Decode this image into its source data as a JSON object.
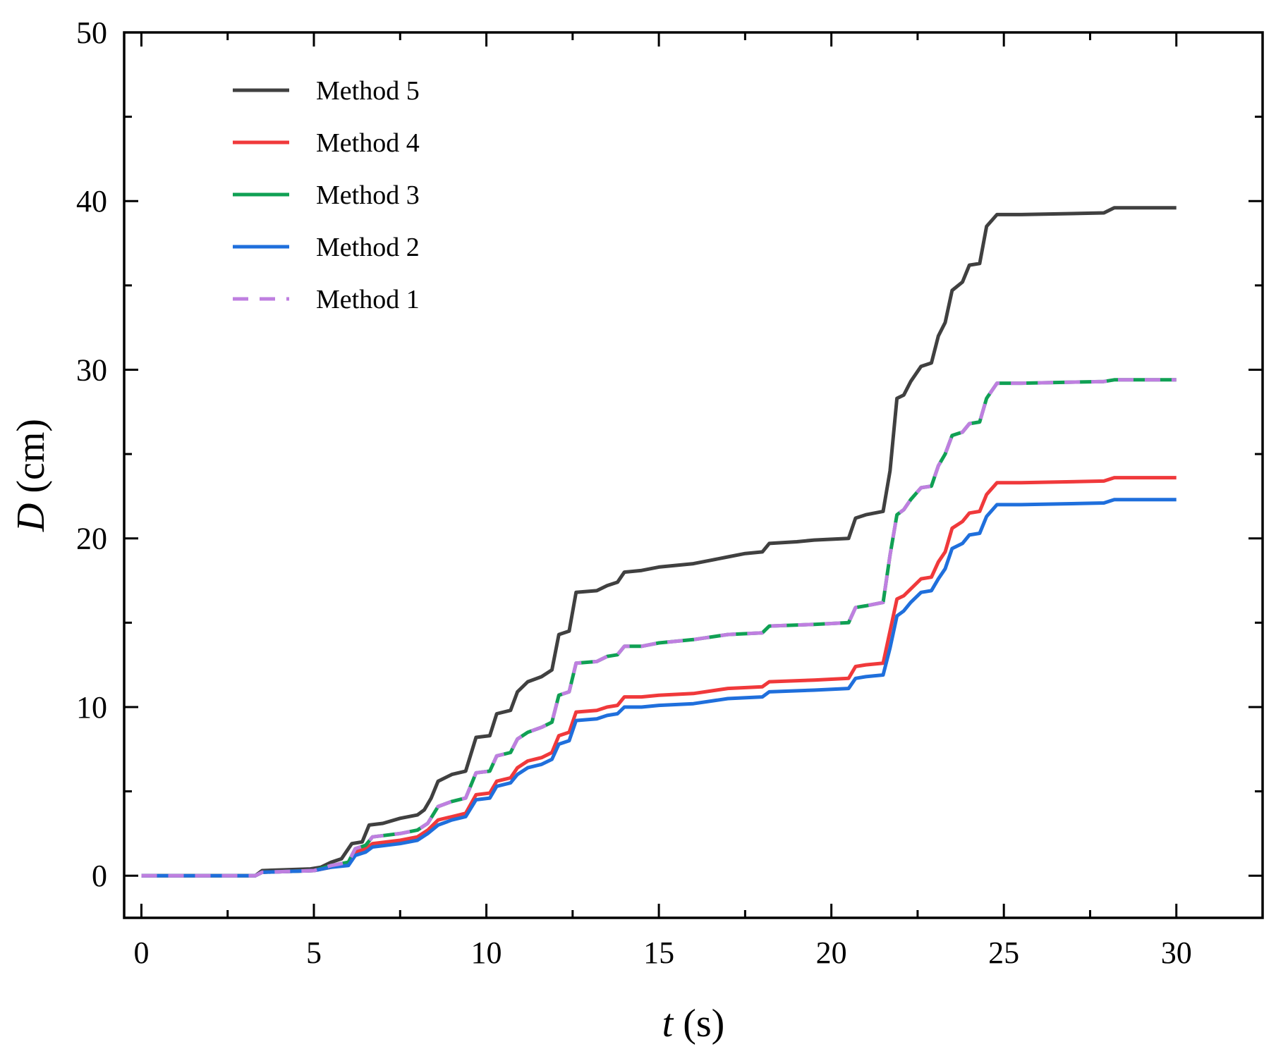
{
  "chart_data": {
    "type": "line",
    "title": "",
    "xlabel": {
      "symbol": "t",
      "unit": " (s)"
    },
    "ylabel": {
      "symbol": "D",
      "unit": " (cm)"
    },
    "xlim": [
      -0.5,
      32.5
    ],
    "ylim": [
      -2.5,
      50
    ],
    "xticks": [
      0,
      5,
      10,
      15,
      20,
      25,
      30
    ],
    "yticks": [
      0,
      10,
      20,
      30,
      40,
      50
    ],
    "grid": false,
    "legend": {
      "position": "top-left"
    },
    "series": [
      {
        "name": "Method 5",
        "color": "#404040",
        "dash": false,
        "points": [
          [
            0,
            0
          ],
          [
            3.3,
            0
          ],
          [
            3.5,
            0.3
          ],
          [
            4.9,
            0.4
          ],
          [
            5.2,
            0.5
          ],
          [
            5.5,
            0.8
          ],
          [
            5.8,
            1.0
          ],
          [
            6.1,
            1.9
          ],
          [
            6.4,
            2.0
          ],
          [
            6.6,
            3.0
          ],
          [
            7.0,
            3.1
          ],
          [
            7.5,
            3.4
          ],
          [
            8.0,
            3.6
          ],
          [
            8.2,
            3.9
          ],
          [
            8.4,
            4.6
          ],
          [
            8.6,
            5.6
          ],
          [
            9.0,
            6.0
          ],
          [
            9.4,
            6.2
          ],
          [
            9.7,
            8.2
          ],
          [
            10.1,
            8.3
          ],
          [
            10.3,
            9.6
          ],
          [
            10.7,
            9.8
          ],
          [
            10.9,
            10.9
          ],
          [
            11.2,
            11.5
          ],
          [
            11.6,
            11.8
          ],
          [
            11.9,
            12.2
          ],
          [
            12.1,
            14.3
          ],
          [
            12.4,
            14.5
          ],
          [
            12.6,
            16.8
          ],
          [
            13.2,
            16.9
          ],
          [
            13.5,
            17.2
          ],
          [
            13.8,
            17.4
          ],
          [
            14.0,
            18.0
          ],
          [
            14.5,
            18.1
          ],
          [
            15.0,
            18.3
          ],
          [
            16.0,
            18.5
          ],
          [
            16.5,
            18.7
          ],
          [
            17.0,
            18.9
          ],
          [
            17.5,
            19.1
          ],
          [
            18.0,
            19.2
          ],
          [
            18.2,
            19.7
          ],
          [
            19.0,
            19.8
          ],
          [
            19.5,
            19.9
          ],
          [
            20.5,
            20.0
          ],
          [
            20.7,
            21.2
          ],
          [
            21.0,
            21.4
          ],
          [
            21.5,
            21.6
          ],
          [
            21.7,
            24.0
          ],
          [
            21.9,
            28.3
          ],
          [
            22.1,
            28.5
          ],
          [
            22.3,
            29.3
          ],
          [
            22.6,
            30.2
          ],
          [
            22.9,
            30.4
          ],
          [
            23.1,
            32.0
          ],
          [
            23.3,
            32.8
          ],
          [
            23.5,
            34.7
          ],
          [
            23.8,
            35.2
          ],
          [
            24.0,
            36.2
          ],
          [
            24.3,
            36.3
          ],
          [
            24.5,
            38.5
          ],
          [
            24.8,
            39.2
          ],
          [
            25.5,
            39.2
          ],
          [
            27.9,
            39.3
          ],
          [
            28.2,
            39.6
          ],
          [
            30,
            39.6
          ]
        ]
      },
      {
        "name": "Method 4",
        "color": "#f0393b",
        "dash": false,
        "points": [
          [
            0,
            0
          ],
          [
            3.3,
            0
          ],
          [
            3.5,
            0.2
          ],
          [
            5.0,
            0.3
          ],
          [
            5.5,
            0.5
          ],
          [
            6.0,
            0.7
          ],
          [
            6.2,
            1.4
          ],
          [
            6.5,
            1.6
          ],
          [
            6.7,
            1.9
          ],
          [
            7.5,
            2.1
          ],
          [
            8.0,
            2.3
          ],
          [
            8.3,
            2.7
          ],
          [
            8.6,
            3.3
          ],
          [
            9.0,
            3.5
          ],
          [
            9.4,
            3.7
          ],
          [
            9.7,
            4.8
          ],
          [
            10.1,
            4.9
          ],
          [
            10.3,
            5.6
          ],
          [
            10.7,
            5.8
          ],
          [
            10.9,
            6.4
          ],
          [
            11.2,
            6.8
          ],
          [
            11.6,
            7.0
          ],
          [
            11.9,
            7.3
          ],
          [
            12.1,
            8.3
          ],
          [
            12.4,
            8.5
          ],
          [
            12.6,
            9.7
          ],
          [
            13.2,
            9.8
          ],
          [
            13.5,
            10.0
          ],
          [
            13.8,
            10.1
          ],
          [
            14.0,
            10.6
          ],
          [
            14.5,
            10.6
          ],
          [
            15.0,
            10.7
          ],
          [
            16.0,
            10.8
          ],
          [
            17.0,
            11.1
          ],
          [
            18.0,
            11.2
          ],
          [
            18.2,
            11.5
          ],
          [
            19.5,
            11.6
          ],
          [
            20.5,
            11.7
          ],
          [
            20.7,
            12.4
          ],
          [
            21.0,
            12.5
          ],
          [
            21.5,
            12.6
          ],
          [
            21.7,
            14.5
          ],
          [
            21.9,
            16.4
          ],
          [
            22.1,
            16.6
          ],
          [
            22.3,
            17.0
          ],
          [
            22.6,
            17.6
          ],
          [
            22.9,
            17.7
          ],
          [
            23.1,
            18.6
          ],
          [
            23.3,
            19.2
          ],
          [
            23.5,
            20.6
          ],
          [
            23.8,
            21.0
          ],
          [
            24.0,
            21.5
          ],
          [
            24.3,
            21.6
          ],
          [
            24.5,
            22.6
          ],
          [
            24.8,
            23.3
          ],
          [
            25.5,
            23.3
          ],
          [
            27.9,
            23.4
          ],
          [
            28.2,
            23.6
          ],
          [
            30,
            23.6
          ]
        ]
      },
      {
        "name": "Method 3",
        "color": "#10a054",
        "dash": false,
        "points": [
          [
            0,
            0
          ],
          [
            3.3,
            0
          ],
          [
            3.5,
            0.2
          ],
          [
            5.0,
            0.3
          ],
          [
            5.5,
            0.6
          ],
          [
            6.0,
            0.8
          ],
          [
            6.2,
            1.6
          ],
          [
            6.5,
            1.8
          ],
          [
            6.7,
            2.3
          ],
          [
            7.5,
            2.5
          ],
          [
            8.0,
            2.7
          ],
          [
            8.3,
            3.1
          ],
          [
            8.6,
            4.1
          ],
          [
            9.0,
            4.4
          ],
          [
            9.4,
            4.6
          ],
          [
            9.7,
            6.1
          ],
          [
            10.1,
            6.2
          ],
          [
            10.3,
            7.1
          ],
          [
            10.7,
            7.3
          ],
          [
            10.9,
            8.1
          ],
          [
            11.2,
            8.5
          ],
          [
            11.6,
            8.8
          ],
          [
            11.9,
            9.1
          ],
          [
            12.1,
            10.7
          ],
          [
            12.4,
            10.9
          ],
          [
            12.6,
            12.6
          ],
          [
            13.2,
            12.7
          ],
          [
            13.5,
            13.0
          ],
          [
            13.8,
            13.1
          ],
          [
            14.0,
            13.6
          ],
          [
            14.5,
            13.6
          ],
          [
            15.0,
            13.8
          ],
          [
            16.0,
            14.0
          ],
          [
            17.0,
            14.3
          ],
          [
            18.0,
            14.4
          ],
          [
            18.2,
            14.8
          ],
          [
            19.5,
            14.9
          ],
          [
            20.5,
            15.0
          ],
          [
            20.7,
            15.9
          ],
          [
            21.0,
            16.0
          ],
          [
            21.5,
            16.2
          ],
          [
            21.7,
            19.0
          ],
          [
            21.9,
            21.4
          ],
          [
            22.1,
            21.7
          ],
          [
            22.3,
            22.3
          ],
          [
            22.6,
            23.0
          ],
          [
            22.9,
            23.1
          ],
          [
            23.1,
            24.3
          ],
          [
            23.3,
            25.0
          ],
          [
            23.5,
            26.1
          ],
          [
            23.8,
            26.3
          ],
          [
            24.0,
            26.8
          ],
          [
            24.3,
            26.9
          ],
          [
            24.5,
            28.3
          ],
          [
            24.8,
            29.2
          ],
          [
            25.5,
            29.2
          ],
          [
            27.9,
            29.3
          ],
          [
            28.2,
            29.4
          ],
          [
            30,
            29.4
          ]
        ]
      },
      {
        "name": "Method 2",
        "color": "#1f6fdc",
        "dash": false,
        "points": [
          [
            0,
            0
          ],
          [
            3.3,
            0
          ],
          [
            3.5,
            0.2
          ],
          [
            5.0,
            0.3
          ],
          [
            5.5,
            0.5
          ],
          [
            6.0,
            0.6
          ],
          [
            6.2,
            1.2
          ],
          [
            6.5,
            1.4
          ],
          [
            6.7,
            1.7
          ],
          [
            7.5,
            1.9
          ],
          [
            8.0,
            2.1
          ],
          [
            8.3,
            2.5
          ],
          [
            8.6,
            3.0
          ],
          [
            9.0,
            3.3
          ],
          [
            9.4,
            3.5
          ],
          [
            9.7,
            4.5
          ],
          [
            10.1,
            4.6
          ],
          [
            10.3,
            5.3
          ],
          [
            10.7,
            5.5
          ],
          [
            10.9,
            6.0
          ],
          [
            11.2,
            6.4
          ],
          [
            11.6,
            6.6
          ],
          [
            11.9,
            6.9
          ],
          [
            12.1,
            7.8
          ],
          [
            12.4,
            8.0
          ],
          [
            12.6,
            9.2
          ],
          [
            13.2,
            9.3
          ],
          [
            13.5,
            9.5
          ],
          [
            13.8,
            9.6
          ],
          [
            14.0,
            10.0
          ],
          [
            14.5,
            10.0
          ],
          [
            15.0,
            10.1
          ],
          [
            16.0,
            10.2
          ],
          [
            17.0,
            10.5
          ],
          [
            18.0,
            10.6
          ],
          [
            18.2,
            10.9
          ],
          [
            19.5,
            11.0
          ],
          [
            20.5,
            11.1
          ],
          [
            20.7,
            11.7
          ],
          [
            21.0,
            11.8
          ],
          [
            21.5,
            11.9
          ],
          [
            21.7,
            13.5
          ],
          [
            21.9,
            15.4
          ],
          [
            22.1,
            15.7
          ],
          [
            22.3,
            16.2
          ],
          [
            22.6,
            16.8
          ],
          [
            22.9,
            16.9
          ],
          [
            23.1,
            17.6
          ],
          [
            23.3,
            18.2
          ],
          [
            23.5,
            19.4
          ],
          [
            23.8,
            19.7
          ],
          [
            24.0,
            20.2
          ],
          [
            24.3,
            20.3
          ],
          [
            24.5,
            21.3
          ],
          [
            24.8,
            22.0
          ],
          [
            25.5,
            22.0
          ],
          [
            27.9,
            22.1
          ],
          [
            28.2,
            22.3
          ],
          [
            30,
            22.3
          ]
        ]
      },
      {
        "name": "Method 1",
        "color": "#bf7fe0",
        "dash": true,
        "points": [
          [
            0,
            0
          ],
          [
            3.3,
            0
          ],
          [
            3.5,
            0.2
          ],
          [
            5.0,
            0.3
          ],
          [
            5.5,
            0.6
          ],
          [
            6.0,
            0.8
          ],
          [
            6.2,
            1.6
          ],
          [
            6.5,
            1.8
          ],
          [
            6.7,
            2.3
          ],
          [
            7.5,
            2.5
          ],
          [
            8.0,
            2.7
          ],
          [
            8.3,
            3.1
          ],
          [
            8.6,
            4.1
          ],
          [
            9.0,
            4.4
          ],
          [
            9.4,
            4.6
          ],
          [
            9.7,
            6.1
          ],
          [
            10.1,
            6.2
          ],
          [
            10.3,
            7.1
          ],
          [
            10.7,
            7.3
          ],
          [
            10.9,
            8.1
          ],
          [
            11.2,
            8.5
          ],
          [
            11.6,
            8.8
          ],
          [
            11.9,
            9.1
          ],
          [
            12.1,
            10.7
          ],
          [
            12.4,
            10.9
          ],
          [
            12.6,
            12.6
          ],
          [
            13.2,
            12.7
          ],
          [
            13.5,
            13.0
          ],
          [
            13.8,
            13.1
          ],
          [
            14.0,
            13.6
          ],
          [
            14.5,
            13.6
          ],
          [
            15.0,
            13.8
          ],
          [
            16.0,
            14.0
          ],
          [
            17.0,
            14.3
          ],
          [
            18.0,
            14.4
          ],
          [
            18.2,
            14.8
          ],
          [
            19.5,
            14.9
          ],
          [
            20.5,
            15.0
          ],
          [
            20.7,
            15.9
          ],
          [
            21.0,
            16.0
          ],
          [
            21.5,
            16.2
          ],
          [
            21.7,
            19.0
          ],
          [
            21.9,
            21.4
          ],
          [
            22.1,
            21.7
          ],
          [
            22.3,
            22.3
          ],
          [
            22.6,
            23.0
          ],
          [
            22.9,
            23.1
          ],
          [
            23.1,
            24.3
          ],
          [
            23.3,
            25.0
          ],
          [
            23.5,
            26.1
          ],
          [
            23.8,
            26.3
          ],
          [
            24.0,
            26.8
          ],
          [
            24.3,
            26.9
          ],
          [
            24.5,
            28.3
          ],
          [
            24.8,
            29.2
          ],
          [
            25.5,
            29.2
          ],
          [
            27.9,
            29.3
          ],
          [
            28.2,
            29.4
          ],
          [
            30,
            29.4
          ]
        ]
      }
    ]
  }
}
